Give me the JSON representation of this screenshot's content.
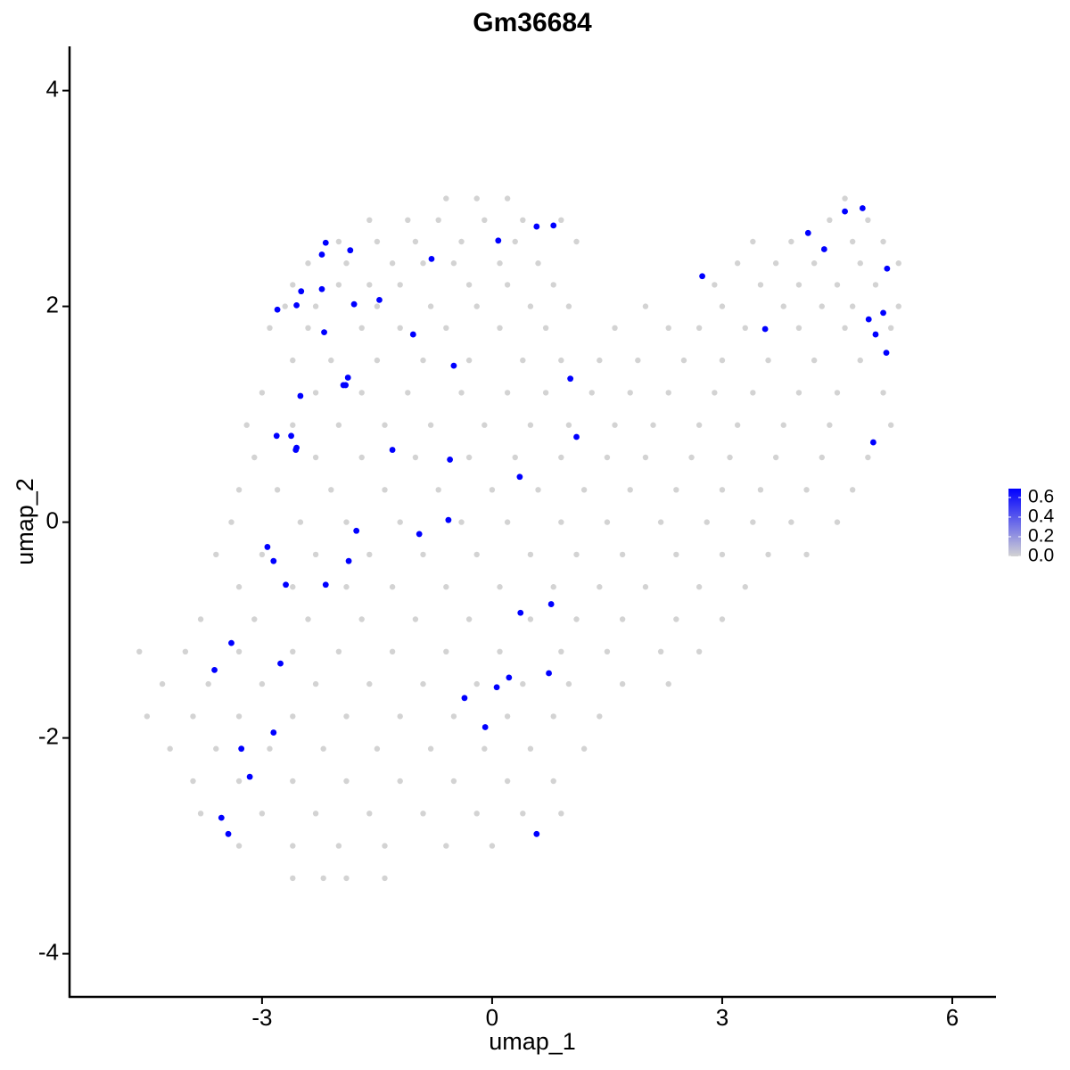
{
  "chart_data": {
    "type": "scatter",
    "title": "Gm36684",
    "x_label": "umap_1",
    "y_label": "umap_2",
    "xlim": [
      -5.51,
      6.57
    ],
    "ylim": [
      -4.4,
      4.41
    ],
    "xticks": [
      -3,
      0,
      3,
      6
    ],
    "yticks": [
      -4,
      -2,
      0,
      2,
      4
    ],
    "grid": false,
    "series": [
      {
        "color": "#d3d3d3",
        "x": [
          -0.6,
          -0.2,
          0.2,
          4.6,
          -1.6,
          -1.1,
          -0.7,
          -0.1,
          0.4,
          0.9,
          4.4,
          4.9,
          -2.0,
          -1.5,
          -1.0,
          -0.4,
          0.3,
          1.1,
          3.4,
          3.9,
          4.7,
          5.1,
          -2.4,
          -1.9,
          -1.3,
          -0.9,
          -0.5,
          0.1,
          0.6,
          3.2,
          3.7,
          4.2,
          4.8,
          5.3,
          -2.6,
          -2.0,
          -1.6,
          -1.2,
          -0.3,
          0.2,
          0.8,
          2.9,
          3.5,
          4.0,
          4.5,
          5.0,
          -2.7,
          -2.3,
          -1.5,
          -0.8,
          -0.2,
          0.5,
          1.0,
          2.0,
          3.0,
          3.8,
          4.3,
          4.7,
          5.3,
          -2.9,
          -2.4,
          -1.7,
          -1.2,
          -0.6,
          0.1,
          0.7,
          1.6,
          2.3,
          2.7,
          3.3,
          4.0,
          4.6,
          5.2,
          -2.6,
          -2.1,
          -1.5,
          -0.9,
          -0.3,
          0.4,
          0.9,
          1.4,
          1.9,
          2.5,
          3.0,
          3.6,
          4.2,
          4.8,
          -3.0,
          -2.3,
          -1.7,
          -1.1,
          -0.4,
          0.2,
          0.7,
          1.3,
          1.8,
          2.3,
          2.9,
          3.4,
          4.0,
          4.5,
          5.1,
          -3.2,
          -2.6,
          -2.0,
          -1.4,
          -0.8,
          -0.1,
          0.5,
          1.0,
          1.6,
          2.1,
          2.7,
          3.2,
          3.8,
          4.4,
          5.2,
          -3.1,
          -2.3,
          -1.7,
          -1.0,
          -0.3,
          0.3,
          0.9,
          1.5,
          2.0,
          2.6,
          3.1,
          3.7,
          4.3,
          4.9,
          -3.3,
          -2.8,
          -2.1,
          -1.4,
          -0.7,
          0.0,
          0.6,
          1.2,
          1.8,
          2.4,
          3.0,
          3.5,
          4.1,
          4.7,
          -3.4,
          -2.5,
          -1.9,
          -1.2,
          -0.4,
          0.2,
          0.9,
          1.5,
          2.2,
          2.8,
          3.4,
          3.9,
          4.5,
          -3.6,
          -3.0,
          -2.3,
          -1.6,
          -0.9,
          -0.2,
          0.5,
          1.1,
          1.7,
          2.4,
          3.0,
          3.6,
          4.1,
          -3.3,
          -2.6,
          -1.9,
          -1.3,
          -0.6,
          0.1,
          0.8,
          1.4,
          2.0,
          2.7,
          3.3,
          -3.8,
          -3.1,
          -2.4,
          -1.7,
          -1.0,
          -0.3,
          0.5,
          1.1,
          1.7,
          2.4,
          3.0,
          -4.6,
          -4.0,
          -3.3,
          -2.6,
          -2.0,
          -1.3,
          -0.6,
          0.1,
          0.9,
          1.5,
          2.2,
          2.7,
          -4.3,
          -3.7,
          -3.0,
          -2.3,
          -1.6,
          -0.9,
          -0.2,
          0.4,
          1.0,
          1.7,
          2.3,
          -4.5,
          -3.9,
          -3.3,
          -2.6,
          -1.9,
          -1.2,
          -0.5,
          0.2,
          0.8,
          1.4,
          -4.2,
          -3.6,
          -2.9,
          -2.2,
          -1.5,
          -0.8,
          -0.1,
          0.5,
          1.2,
          -3.9,
          -3.3,
          -2.6,
          -1.9,
          -1.2,
          -0.5,
          0.2,
          0.8,
          -3.8,
          -3.0,
          -2.3,
          -1.6,
          -0.9,
          -0.2,
          0.4,
          0.9,
          -3.3,
          -2.6,
          -2.0,
          -1.4,
          -0.6,
          0.0,
          -2.6,
          -2.2,
          -1.9,
          -1.4
        ],
        "values": [
          3.0,
          3.0,
          3.0,
          3.0,
          2.8,
          2.8,
          2.8,
          2.8,
          2.8,
          2.8,
          2.8,
          2.8,
          2.6,
          2.6,
          2.6,
          2.6,
          2.6,
          2.6,
          2.6,
          2.6,
          2.6,
          2.6,
          2.4,
          2.4,
          2.4,
          2.4,
          2.4,
          2.4,
          2.4,
          2.4,
          2.4,
          2.4,
          2.4,
          2.4,
          2.2,
          2.2,
          2.2,
          2.2,
          2.2,
          2.2,
          2.2,
          2.2,
          2.2,
          2.2,
          2.2,
          2.2,
          2.0,
          2.0,
          2.0,
          2.0,
          2.0,
          2.0,
          2.0,
          2.0,
          2.0,
          2.0,
          2.0,
          2.0,
          2.0,
          1.8,
          1.8,
          1.8,
          1.8,
          1.8,
          1.8,
          1.8,
          1.8,
          1.8,
          1.8,
          1.8,
          1.8,
          1.8,
          1.8,
          1.5,
          1.5,
          1.5,
          1.5,
          1.5,
          1.5,
          1.5,
          1.5,
          1.5,
          1.5,
          1.5,
          1.5,
          1.5,
          1.5,
          1.2,
          1.2,
          1.2,
          1.2,
          1.2,
          1.2,
          1.2,
          1.2,
          1.2,
          1.2,
          1.2,
          1.2,
          1.2,
          1.2,
          1.2,
          0.9,
          0.9,
          0.9,
          0.9,
          0.9,
          0.9,
          0.9,
          0.9,
          0.9,
          0.9,
          0.9,
          0.9,
          0.9,
          0.9,
          0.9,
          0.6,
          0.6,
          0.6,
          0.6,
          0.6,
          0.6,
          0.6,
          0.6,
          0.6,
          0.6,
          0.6,
          0.6,
          0.6,
          0.6,
          0.3,
          0.3,
          0.3,
          0.3,
          0.3,
          0.3,
          0.3,
          0.3,
          0.3,
          0.3,
          0.3,
          0.3,
          0.3,
          0.3,
          0.0,
          0.0,
          0.0,
          0.0,
          0.0,
          0.0,
          0.0,
          0.0,
          0.0,
          0.0,
          0.0,
          0.0,
          0.0,
          -0.3,
          -0.3,
          -0.3,
          -0.3,
          -0.3,
          -0.3,
          -0.3,
          -0.3,
          -0.3,
          -0.3,
          -0.3,
          -0.3,
          -0.3,
          -0.6,
          -0.6,
          -0.6,
          -0.6,
          -0.6,
          -0.6,
          -0.6,
          -0.6,
          -0.6,
          -0.6,
          -0.6,
          -0.9,
          -0.9,
          -0.9,
          -0.9,
          -0.9,
          -0.9,
          -0.9,
          -0.9,
          -0.9,
          -0.9,
          -0.9,
          -1.2,
          -1.2,
          -1.2,
          -1.2,
          -1.2,
          -1.2,
          -1.2,
          -1.2,
          -1.2,
          -1.2,
          -1.2,
          -1.2,
          -1.5,
          -1.5,
          -1.5,
          -1.5,
          -1.5,
          -1.5,
          -1.5,
          -1.5,
          -1.5,
          -1.5,
          -1.5,
          -1.8,
          -1.8,
          -1.8,
          -1.8,
          -1.8,
          -1.8,
          -1.8,
          -1.8,
          -1.8,
          -1.8,
          -2.1,
          -2.1,
          -2.1,
          -2.1,
          -2.1,
          -2.1,
          -2.1,
          -2.1,
          -2.1,
          -2.4,
          -2.4,
          -2.4,
          -2.4,
          -2.4,
          -2.4,
          -2.4,
          -2.4,
          -2.7,
          -2.7,
          -2.7,
          -2.7,
          -2.7,
          -2.7,
          -2.7,
          -2.7,
          -3.0,
          -3.0,
          -3.0,
          -3.0,
          -3.0,
          -3.0,
          -3.3,
          -3.3,
          -3.3,
          -3.3
        ]
      },
      {
        "color": "#0000ff",
        "x": [
          -2.17,
          -2.22,
          -1.85,
          0.08,
          0.58,
          0.8,
          -0.79,
          -2.49,
          -2.22,
          -2.8,
          -2.55,
          -1.8,
          -1.47,
          -2.19,
          -1.03,
          -0.5,
          -1.88,
          -1.94,
          -1.91,
          -2.5,
          1.02,
          -2.81,
          -2.62,
          -2.55,
          -2.56,
          -1.3,
          -0.55,
          0.36,
          1.1,
          -0.57,
          -0.95,
          -1.77,
          -2.93,
          -2.85,
          -1.87,
          -2.69,
          -2.17,
          0.37,
          0.77,
          -3.4,
          -2.76,
          -3.62,
          0.74,
          0.22,
          0.06,
          -0.36,
          -0.09,
          -2.85,
          -3.27,
          -3.16,
          -3.53,
          -3.44,
          0.58,
          2.74,
          3.56,
          4.12,
          4.33,
          4.6,
          4.83,
          5.15,
          5.1,
          4.91,
          5.0,
          5.14,
          4.97
        ],
        "values": [
          2.59,
          2.48,
          2.52,
          2.61,
          2.74,
          2.75,
          2.44,
          2.14,
          2.16,
          1.97,
          2.01,
          2.02,
          2.06,
          1.76,
          1.74,
          1.45,
          1.34,
          1.27,
          1.27,
          1.17,
          1.33,
          0.8,
          0.8,
          0.69,
          0.67,
          0.67,
          0.58,
          0.42,
          0.79,
          0.02,
          -0.11,
          -0.08,
          -0.23,
          -0.36,
          -0.36,
          -0.58,
          -0.58,
          -0.84,
          -0.76,
          -1.12,
          -1.31,
          -1.37,
          -1.4,
          -1.44,
          -1.53,
          -1.63,
          -1.9,
          -1.95,
          -2.1,
          -2.36,
          -2.74,
          -2.89,
          -2.89,
          2.28,
          1.79,
          2.68,
          2.53,
          2.88,
          2.91,
          2.35,
          1.94,
          1.88,
          1.74,
          1.57,
          0.74
        ]
      }
    ],
    "colorbar": {
      "lim": [
        0,
        0.69
      ],
      "colors": [
        "#d3d3d3",
        "#0000ff"
      ],
      "ticks": [
        {
          "value": 0,
          "label": "0.0"
        },
        {
          "value": 0.2,
          "label": "0.2"
        },
        {
          "value": 0.4,
          "label": "0.4"
        },
        {
          "value": 0.6,
          "label": "0.6"
        }
      ]
    }
  }
}
